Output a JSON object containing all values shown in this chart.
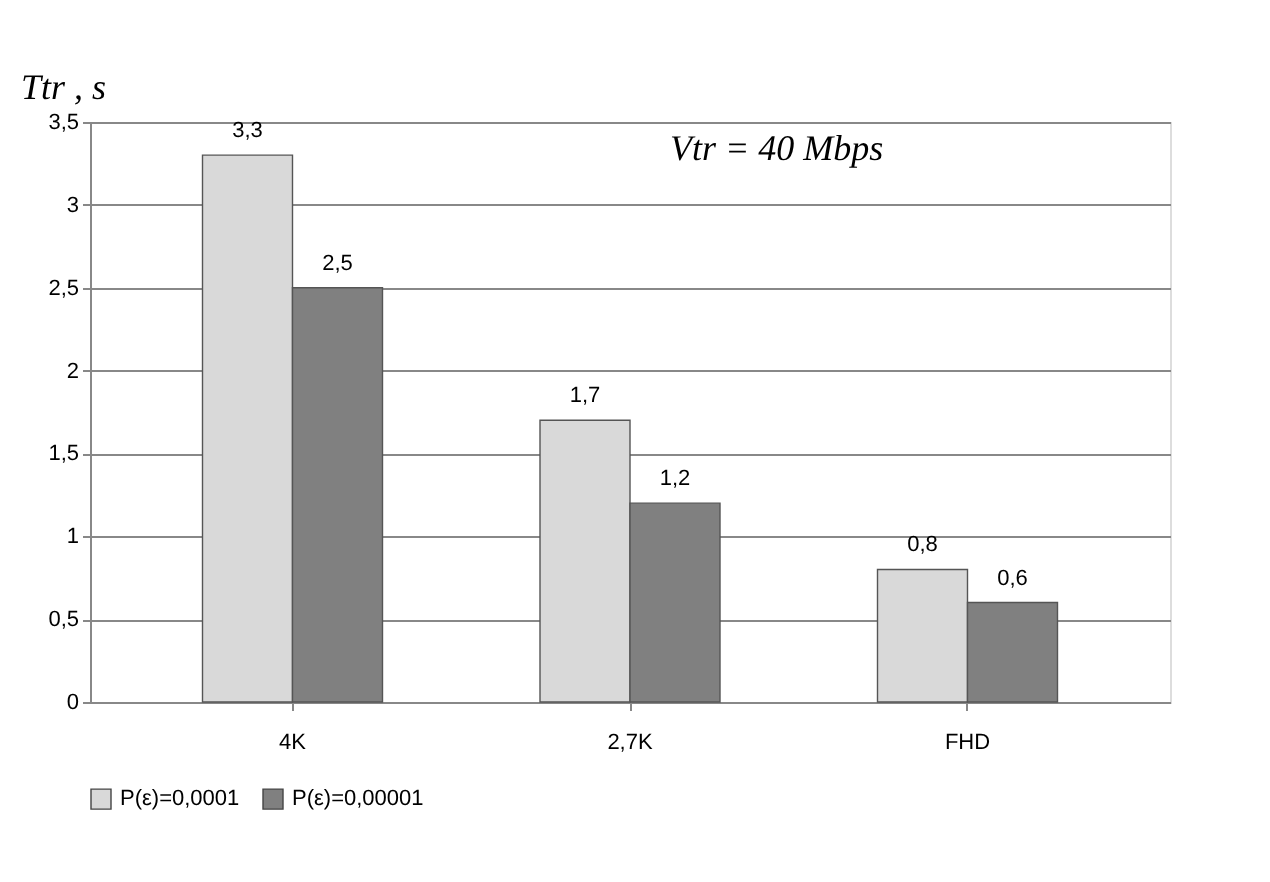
{
  "chart_data": {
    "type": "bar",
    "categories": [
      "4K",
      "2,7K",
      "FHD"
    ],
    "series": [
      {
        "name": "P(ε)=0,0001",
        "color": "#d9d9d9",
        "values": [
          3.3,
          1.7,
          0.8
        ],
        "value_labels": [
          "3,3",
          "1,7",
          "0,8"
        ]
      },
      {
        "name": "P(ε)=0,00001",
        "color": "#808080",
        "values": [
          2.5,
          1.2,
          0.6
        ],
        "value_labels": [
          "2,5",
          "1,2",
          "0,6"
        ]
      }
    ],
    "ylabel": "Ttr , s",
    "annotations": [
      "Vtr = 40 Mbps"
    ],
    "ylim": [
      0,
      3.5
    ],
    "yticks": [
      0,
      {
        "value": 0.5,
        "label": "0,5"
      },
      1,
      {
        "value": 1.5,
        "label": "1,5"
      },
      2,
      {
        "value": 2.5,
        "label": "2,5"
      },
      3,
      {
        "value": 3.5,
        "label": "3,5"
      }
    ],
    "grid": "y",
    "legend": "bottom"
  }
}
